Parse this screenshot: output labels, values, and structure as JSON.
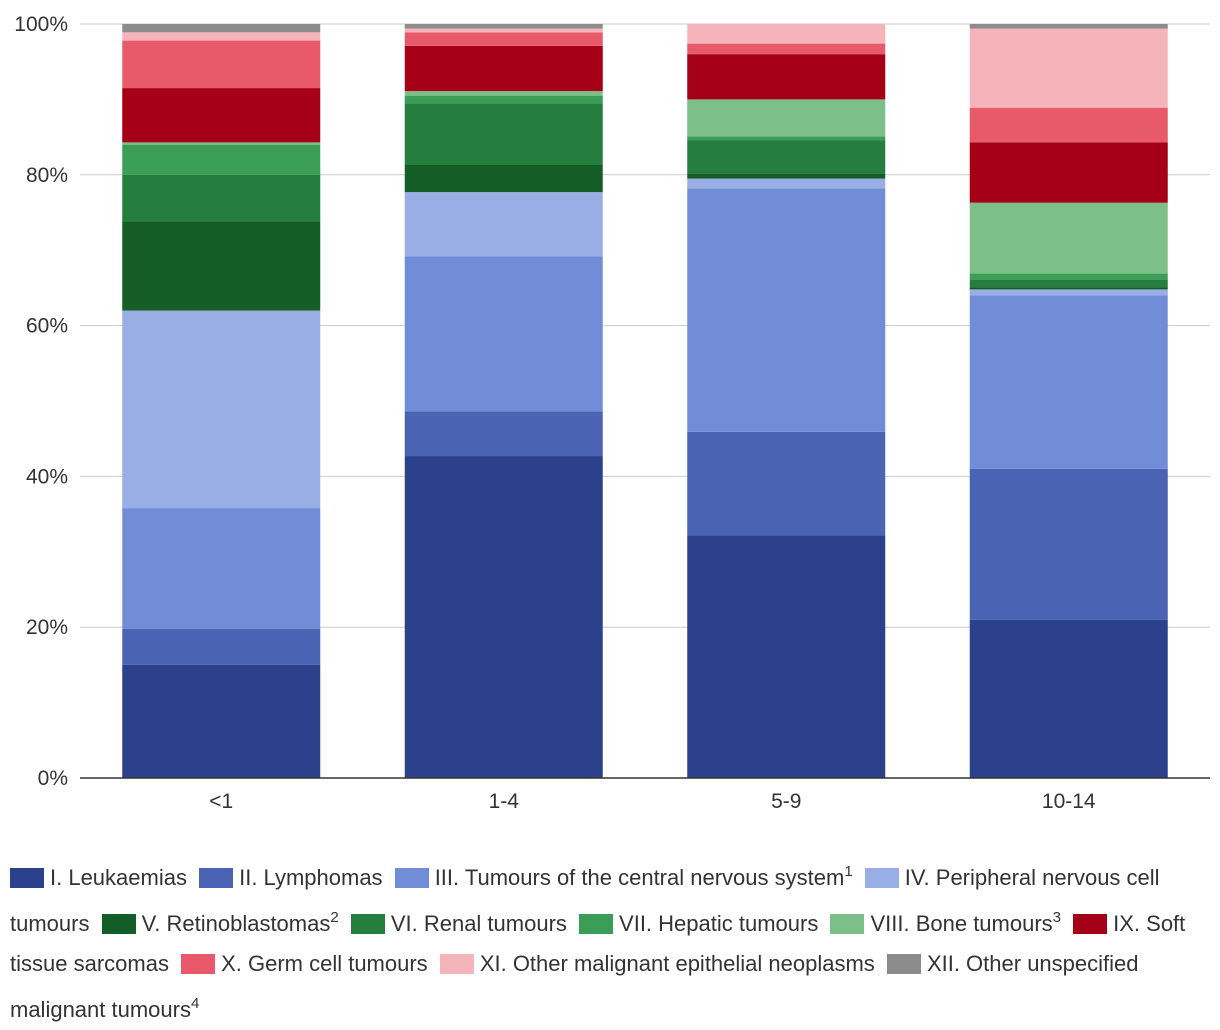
{
  "chart_data": {
    "type": "bar",
    "stacked": true,
    "title": "",
    "xlabel": "",
    "ylabel": "",
    "ylim": [
      0,
      100
    ],
    "y_ticks": [
      "0%",
      "20%",
      "40%",
      "60%",
      "80%",
      "100%"
    ],
    "y_tick_values": [
      0,
      20,
      40,
      60,
      80,
      100
    ],
    "categories": [
      "<1",
      "1-4",
      "5-9",
      "10-14"
    ],
    "legend_position": "bottom",
    "series": [
      {
        "name": "I. Leukaemias",
        "sup": "",
        "color": "#2b418b",
        "values": [
          15.0,
          42.7,
          32.2,
          21.0
        ]
      },
      {
        "name": "II. Lymphomas",
        "sup": "",
        "color": "#4a63b2",
        "values": [
          4.8,
          5.9,
          13.7,
          20.0
        ]
      },
      {
        "name": "III. Tumours of the central nervous system",
        "sup": "1",
        "color": "#728dd8",
        "values": [
          16.0,
          20.6,
          32.3,
          23.0
        ]
      },
      {
        "name": "IV. Peripheral nervous cell tumours",
        "sup": "",
        "color": "#9aaee6",
        "values": [
          26.2,
          8.5,
          1.3,
          0.8
        ]
      },
      {
        "name": "V. Retinoblastomas",
        "sup": "2",
        "color": "#155d27",
        "values": [
          11.8,
          3.6,
          0.7,
          0.3
        ]
      },
      {
        "name": "VI. Renal tumours",
        "sup": "",
        "color": "#267e3e",
        "values": [
          6.2,
          8.2,
          4.4,
          1.0
        ]
      },
      {
        "name": "VII. Hepatic tumours",
        "sup": "",
        "color": "#3a9e57",
        "values": [
          4.0,
          1.0,
          0.5,
          0.8
        ]
      },
      {
        "name": "VIII. Bone tumours",
        "sup": "3",
        "color": "#7dbf88",
        "values": [
          0.3,
          0.6,
          4.9,
          9.4
        ]
      },
      {
        "name": "IX. Soft tissue sarcomas",
        "sup": "",
        "color": "#a50015",
        "values": [
          7.2,
          6.0,
          6.0,
          8.0
        ]
      },
      {
        "name": "X. Germ cell tumours",
        "sup": "",
        "color": "#e85a6a",
        "values": [
          6.3,
          1.8,
          1.4,
          4.6
        ]
      },
      {
        "name": "XI. Other malignant epithelial neoplasms",
        "sup": "",
        "color": "#f5b3ba",
        "values": [
          1.1,
          0.5,
          2.6,
          10.5
        ]
      },
      {
        "name": "XII. Other unspecified malignant tumours",
        "sup": "4",
        "color": "#8c8c8c",
        "values": [
          1.1,
          0.6,
          0.0,
          0.6
        ]
      }
    ]
  }
}
